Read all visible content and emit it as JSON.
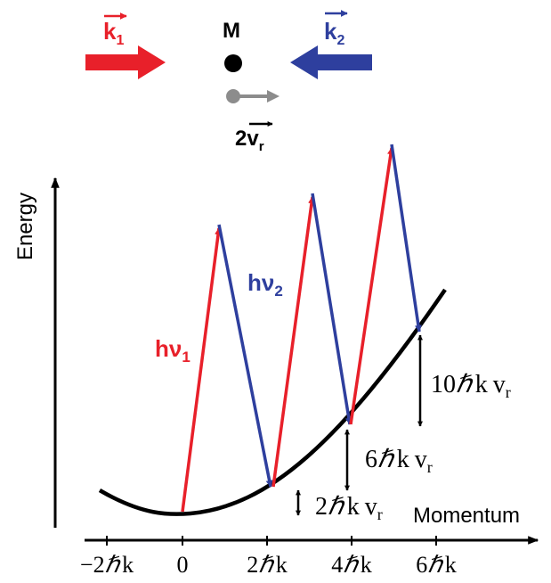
{
  "colors": {
    "red": "#e8202a",
    "blue": "#2e3f9e",
    "gray": "#8c8c8c",
    "black": "#000000"
  },
  "top": {
    "k1_letter": "k",
    "k1_sub": "1",
    "k2_letter": "k",
    "k2_sub": "2",
    "atom_label": "M",
    "recoil_prefix": "2",
    "recoil_letter": "v",
    "recoil_sub": "r"
  },
  "axes": {
    "y_label": "Energy",
    "x_label": "Momentum",
    "x_ticks": [
      {
        "coef": "−2",
        "hbar": "ℏ",
        "k": "k"
      },
      {
        "coef": "0",
        "hbar": "",
        "k": ""
      },
      {
        "coef": "2",
        "hbar": "ℏ",
        "k": "k"
      },
      {
        "coef": "4",
        "hbar": "ℏ",
        "k": "k"
      },
      {
        "coef": "6",
        "hbar": "ℏ",
        "k": "k"
      }
    ]
  },
  "transitions": {
    "absorb_h": "h",
    "absorb_nu": "ν",
    "absorb_sub": "1",
    "emit_h": "h",
    "emit_nu": "ν",
    "emit_sub": "2"
  },
  "energy_gaps": [
    {
      "coef": "2",
      "hbar": "ℏ",
      "k": "k",
      "v": "v",
      "sub": "r"
    },
    {
      "coef": "6",
      "hbar": "ℏ",
      "k": "k",
      "v": "v",
      "sub": "r"
    },
    {
      "coef": "10",
      "hbar": "ℏ",
      "k": "k",
      "v": "v",
      "sub": "r"
    }
  ]
}
